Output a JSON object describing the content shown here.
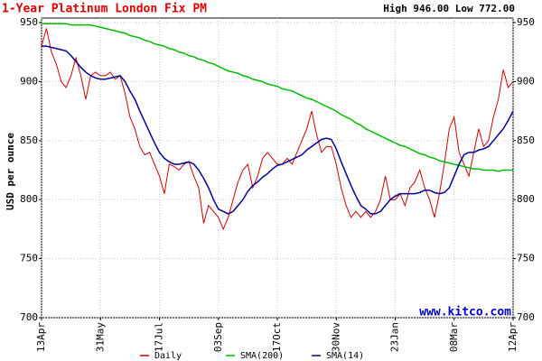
{
  "chart_data": {
    "type": "line",
    "title": "1-Year Platinum London Fix PM",
    "subtitle": "High 946.00 Low 772.00",
    "y_label": "USD per ounce",
    "watermark": "www.kitco.com",
    "categories": [
      "13Apr",
      null,
      null,
      null,
      null,
      null,
      null,
      null,
      null,
      null,
      null,
      null,
      "31May",
      null,
      null,
      null,
      null,
      null,
      null,
      null,
      null,
      null,
      null,
      null,
      "17Jul",
      null,
      null,
      null,
      null,
      null,
      null,
      null,
      null,
      null,
      null,
      null,
      "03Sep",
      null,
      null,
      null,
      null,
      null,
      null,
      null,
      null,
      null,
      null,
      null,
      "17Oct",
      null,
      null,
      null,
      null,
      null,
      null,
      null,
      null,
      null,
      null,
      null,
      "30Nov",
      null,
      null,
      null,
      null,
      null,
      null,
      null,
      null,
      null,
      null,
      null,
      "23Jan",
      null,
      null,
      null,
      null,
      null,
      null,
      null,
      null,
      null,
      null,
      null,
      "08Mar",
      null,
      null,
      null,
      null,
      null,
      null,
      null,
      null,
      null,
      null,
      null,
      "12Apr"
    ],
    "series": [
      {
        "name": "Daily",
        "color": "#cc0000",
        "values": [
          930,
          945,
          925,
          915,
          900,
          895,
          905,
          920,
          905,
          885,
          905,
          908,
          905,
          905,
          908,
          902,
          905,
          890,
          870,
          860,
          845,
          838,
          840,
          830,
          820,
          805,
          830,
          828,
          825,
          830,
          832,
          820,
          810,
          780,
          795,
          790,
          785,
          775,
          785,
          800,
          815,
          825,
          830,
          810,
          820,
          835,
          840,
          835,
          830,
          830,
          835,
          830,
          840,
          850,
          860,
          875,
          855,
          840,
          845,
          845,
          830,
          810,
          795,
          785,
          790,
          785,
          790,
          785,
          790,
          800,
          820,
          800,
          800,
          805,
          795,
          810,
          815,
          825,
          810,
          800,
          785,
          805,
          830,
          860,
          870,
          840,
          830,
          820,
          840,
          860,
          845,
          850,
          870,
          885,
          910,
          895,
          900
        ]
      },
      {
        "name": "SMA(200)",
        "color": "#00bb00",
        "values": [
          949,
          949,
          949,
          949,
          949,
          949,
          948,
          948,
          948,
          948,
          948,
          947,
          946,
          945,
          944,
          943,
          942,
          941,
          939,
          938,
          937,
          935,
          934,
          932,
          931,
          930,
          928,
          927,
          925,
          924,
          922,
          921,
          919,
          918,
          916,
          915,
          913,
          911,
          909,
          908,
          907,
          905,
          904,
          902,
          901,
          900,
          898,
          897,
          896,
          894,
          893,
          892,
          890,
          888,
          886,
          885,
          883,
          881,
          879,
          877,
          875,
          872,
          870,
          868,
          865,
          863,
          860,
          858,
          856,
          854,
          852,
          850,
          848,
          846,
          845,
          843,
          841,
          839,
          838,
          836,
          835,
          833,
          832,
          831,
          830,
          829,
          828,
          827,
          826,
          826,
          825,
          825,
          825,
          824,
          825,
          825,
          825
        ]
      },
      {
        "name": "SMA(14)",
        "color": "#000099",
        "values": [
          930,
          930,
          929,
          928,
          927,
          926,
          922,
          917,
          912,
          908,
          905,
          903,
          902,
          902,
          903,
          904,
          905,
          900,
          892,
          885,
          875,
          866,
          857,
          848,
          840,
          835,
          832,
          830,
          830,
          831,
          832,
          830,
          825,
          818,
          810,
          800,
          792,
          790,
          788,
          790,
          795,
          800,
          807,
          812,
          815,
          819,
          822,
          826,
          829,
          830,
          832,
          834,
          836,
          838,
          842,
          845,
          848,
          851,
          852,
          851,
          843,
          832,
          822,
          812,
          803,
          795,
          792,
          788,
          788,
          790,
          795,
          800,
          803,
          805,
          805,
          805,
          805,
          806,
          808,
          808,
          806,
          805,
          806,
          810,
          820,
          830,
          838,
          840,
          840,
          842,
          843,
          845,
          850,
          855,
          860,
          867,
          875
        ]
      }
    ],
    "ylim": [
      700,
      950
    ],
    "yticks": [
      700,
      750,
      800,
      850,
      900,
      950
    ],
    "grid": true
  }
}
